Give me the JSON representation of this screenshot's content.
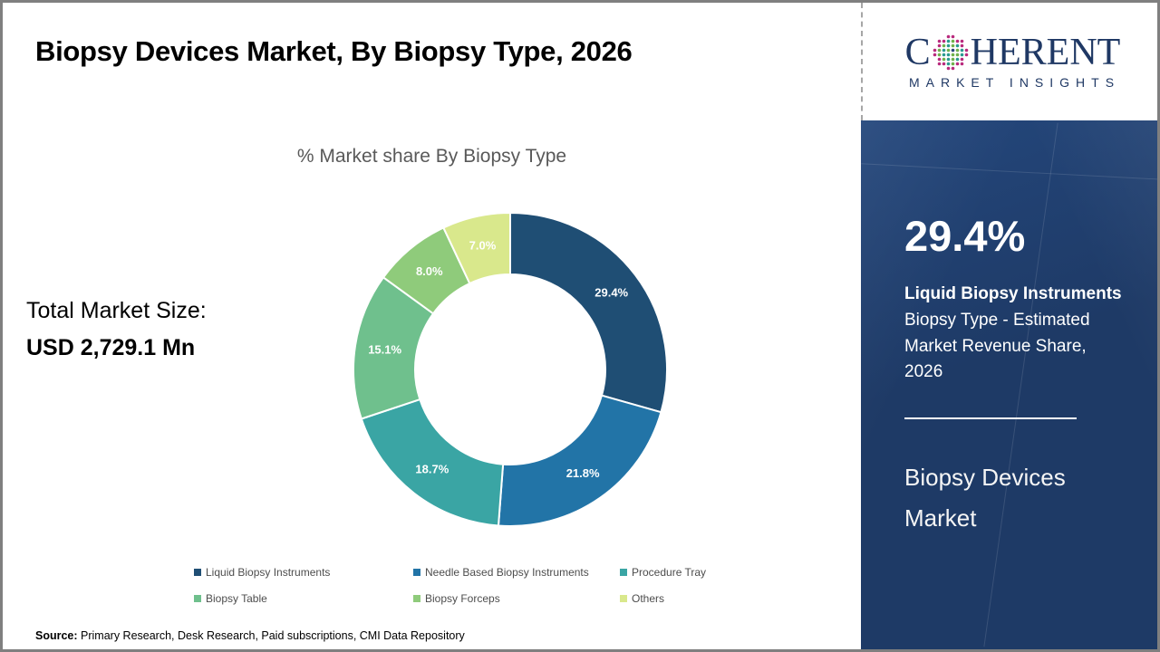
{
  "header": {
    "title": "Biopsy Devices Market, By Biopsy Type, 2026"
  },
  "logo": {
    "word_part1": "C",
    "word_part2": "HERENT",
    "subtitle": "MARKET INSIGHTS",
    "brand_color": "#1f3864",
    "globe_dot_colors": [
      "#b92a7d",
      "#2a9a8f",
      "#6fb04b",
      "#27457d"
    ]
  },
  "left_panel": {
    "total_label": "Total Market Size:",
    "total_value": "USD 2,729.1 Mn"
  },
  "chart_data": {
    "type": "pie",
    "subtype": "donut",
    "title": "% Market share By Biopsy Type",
    "categories": [
      "Liquid Biopsy Instruments",
      "Needle Based Biopsy Instruments",
      "Procedure Tray",
      "Biopsy Table",
      "Biopsy Forceps",
      "Others"
    ],
    "values": [
      29.4,
      21.8,
      18.7,
      15.1,
      8.0,
      7.0
    ],
    "labels": [
      "29.4%",
      "21.8%",
      "18.7%",
      "15.1%",
      "8.0%",
      "7.0%"
    ],
    "colors": [
      "#1f4e74",
      "#2274a7",
      "#3aa5a4",
      "#6fc08d",
      "#8fcb7b",
      "#d9e88c"
    ],
    "start_angle_deg": 0,
    "direction": "clockwise",
    "outer_radius": 173,
    "inner_radius": 105,
    "label_radius": 140,
    "center": [
      560,
      205
    ],
    "legend_position": "bottom"
  },
  "sidebar": {
    "stat_value": "29.4%",
    "stat_label": "Liquid Biopsy Instruments",
    "stat_desc": "Biopsy Type - Estimated Market Revenue Share, 2026",
    "market_name": "Biopsy Devices Market",
    "bg_color": "#1e3a66"
  },
  "source": {
    "label": "Source:",
    "text": " Primary Research, Desk Research, Paid subscriptions, CMI Data Repository"
  }
}
